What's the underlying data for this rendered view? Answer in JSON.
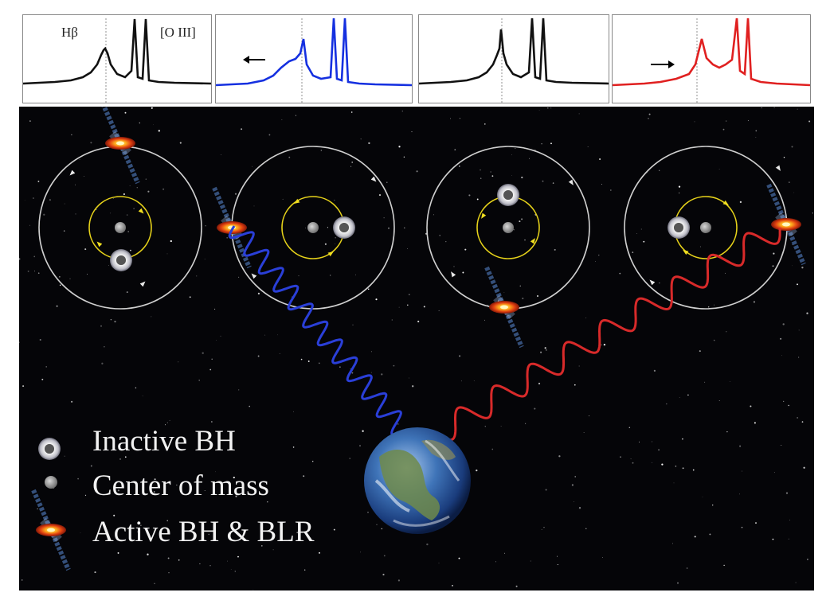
{
  "spectra": {
    "label_hbeta": "Hβ",
    "label_oiii": "[O III]",
    "panels": [
      {
        "color": "#111111",
        "arrow": "none",
        "shift": 0
      },
      {
        "color": "#1530e0",
        "arrow": "left",
        "shift": -1
      },
      {
        "color": "#111111",
        "arrow": "none",
        "shift": 0
      },
      {
        "color": "#e02020",
        "arrow": "right",
        "shift": 1
      }
    ]
  },
  "legend": {
    "inactive_bh": "Inactive BH",
    "center_of_mass": "Center of mass",
    "active_bh": "Active BH & BLR"
  },
  "colors": {
    "blueshift": "#2a3fd8",
    "redshift": "#d82a2a",
    "inner_orbit": "#e6d21a",
    "outer_orbit": "#d0d0d0",
    "background": "#050508"
  },
  "icons": [
    "inactive-bh-icon",
    "center-of-mass-icon",
    "active-bh-icon",
    "earth-icon"
  ]
}
